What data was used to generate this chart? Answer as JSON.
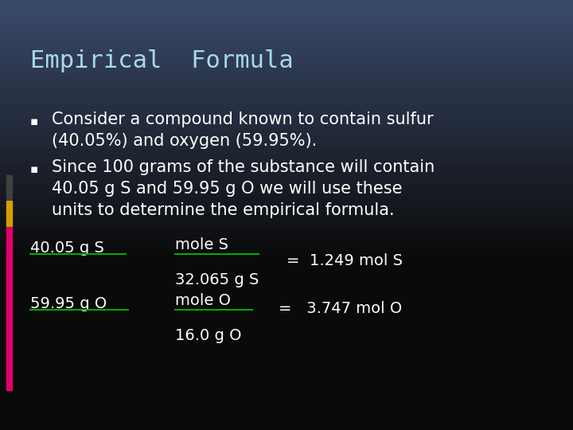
{
  "title": "Empirical  Formula",
  "bullet1_line1": "Consider a compound known to contain sulfur",
  "bullet1_line2": "(40.05%) and oxygen (59.95%).",
  "bullet2_line1": "Since 100 grams of the substance will contain",
  "bullet2_line2": "40.05 g S and 59.95 g O we will use these",
  "bullet2_line3": "units to determine the empirical formula.",
  "calc1_left": "40.05 g S",
  "calc1_num": "mole S",
  "calc1_den": "32.065 g S",
  "calc1_result": "=  1.249 mol S",
  "calc2_left": "59.95 g O",
  "calc2_num": "mole O",
  "calc2_den": "16.0 g O",
  "calc2_result": "=   3.747 mol O",
  "bg_color": "#0a0a0a",
  "bg_bottom_color": "#3a4a6a",
  "title_color": "#a8d8e8",
  "text_color": "#ffffff",
  "fraction_bar_color": "#00aa00",
  "underline_color": "#00aa00",
  "left_bar_dark": "#404040",
  "left_bar_gold": "#d4a000",
  "left_bar_pink": "#e0006a",
  "title_fontsize": 22,
  "body_fontsize": 15,
  "calc_fontsize": 14
}
